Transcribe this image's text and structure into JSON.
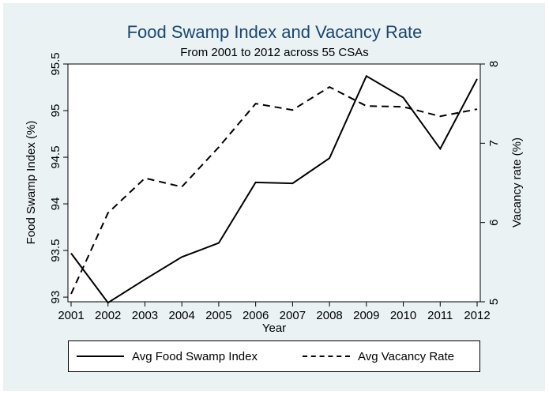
{
  "chart_data": {
    "type": "line",
    "title": "Food Swamp Index and Vacancy Rate",
    "subtitle": "From 2001 to 2012 across 55 CSAs",
    "xlabel": "Year",
    "ylabel_left": "Food Swamp Index (%)",
    "ylabel_right": "Vacancy rate (%)",
    "x": [
      2001,
      2002,
      2003,
      2004,
      2005,
      2006,
      2007,
      2008,
      2009,
      2010,
      2011,
      2012
    ],
    "x_ticks": [
      "2001",
      "2002",
      "2003",
      "2004",
      "2005",
      "2006",
      "2007",
      "2008",
      "2009",
      "2010",
      "2011",
      "2012"
    ],
    "ylim_left": [
      92.95,
      95.5
    ],
    "yticks_left": [
      "93",
      "93.5",
      "94",
      "94.5",
      "95",
      "95.5"
    ],
    "ylim_right": [
      5.0,
      8.0
    ],
    "yticks_right": [
      "5",
      "6",
      "7",
      "8"
    ],
    "grid": false,
    "legend_position": "bottom",
    "series": [
      {
        "name": "Avg Food Swamp Index",
        "axis": "left",
        "style": "solid",
        "values": [
          93.47,
          92.94,
          93.19,
          93.43,
          93.58,
          94.23,
          94.22,
          94.49,
          95.37,
          95.14,
          94.59,
          95.34
        ]
      },
      {
        "name": "Avg Vacancy Rate",
        "axis": "right",
        "style": "dashed",
        "values": [
          5.1,
          6.12,
          6.56,
          6.45,
          6.95,
          7.5,
          7.42,
          7.71,
          7.47,
          7.46,
          7.34,
          7.43
        ]
      }
    ]
  }
}
